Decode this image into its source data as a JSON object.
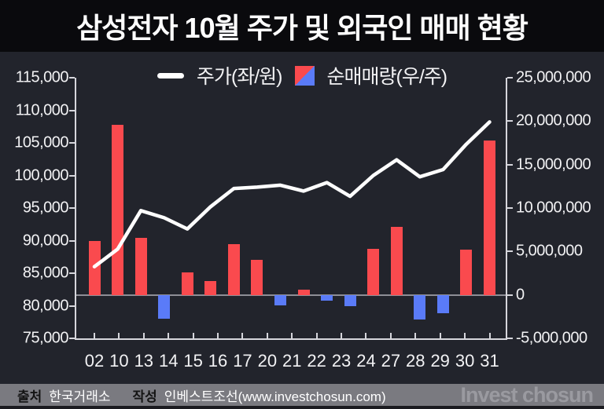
{
  "title": "삼성전자 10월 주가 및 외국인 매매 현황",
  "legend": {
    "price_label": "주가(좌/원)",
    "volume_label": "순매매량(우/주)"
  },
  "chart_data": {
    "type": "line+bar combo",
    "title": "삼성전자 10월 주가 및 외국인 매매 현황",
    "x_labels": [
      "02",
      "10",
      "13",
      "14",
      "15",
      "16",
      "17",
      "20",
      "21",
      "22",
      "23",
      "24",
      "27",
      "28",
      "29",
      "30",
      "31"
    ],
    "num_x_labels": 17,
    "num_points": 18,
    "series": [
      {
        "name": "주가(좌/원)",
        "type": "line",
        "axis": "left",
        "unit": "원",
        "color": "#ffffff",
        "values": [
          86000,
          88700,
          94600,
          93500,
          91800,
          95200,
          98000,
          98200,
          98500,
          97600,
          98900,
          96800,
          100000,
          102400,
          99800,
          100900,
          104800,
          108200
        ]
      },
      {
        "name": "순매매량(우/주)",
        "type": "bar",
        "axis": "right",
        "unit": "주",
        "positive_color": "#fa4a4e",
        "negative_color": "#5a7bf8",
        "values": [
          6200000,
          19600000,
          6600000,
          -2700000,
          2600000,
          1600000,
          5800000,
          4000000,
          -1200000,
          600000,
          -700000,
          -1300000,
          5300000,
          7800000,
          -2800000,
          -2100000,
          5200000,
          17800000
        ]
      }
    ],
    "left_axis": {
      "min": 75000,
      "max": 115000,
      "tick_labels": [
        "115,000",
        "110,000",
        "105,000",
        "100,000",
        "95,000",
        "90,000",
        "85,000",
        "80,000",
        "75,000"
      ]
    },
    "right_axis": {
      "min": -5000000,
      "max": 25000000,
      "tick_labels": [
        "25,000,000",
        "20,000,000",
        "15,000,000",
        "10,000,000",
        "5,000,000",
        "0",
        "-5,000,000"
      ]
    },
    "grid": "zero line only",
    "legend_position": "top center"
  },
  "footer": {
    "source_label": "출처",
    "source": "한국거래소",
    "author_label": "작성",
    "author": "인베스트조선(www.investchosun.com)",
    "logo": "Invest chosun"
  }
}
